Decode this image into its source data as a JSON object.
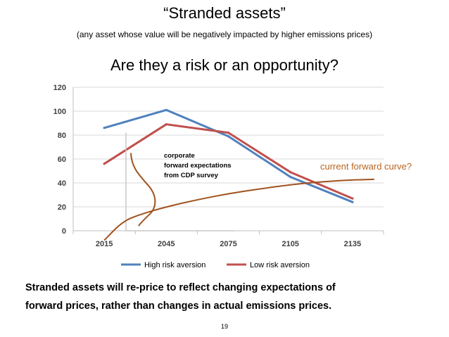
{
  "slide": {
    "title": "“Stranded assets”",
    "subtitle": "(any asset whose value will be negatively impacted by higher emissions prices)",
    "question": "Are they a risk or an opportunity?",
    "conclusion_line1": "Stranded assets will re-price to reflect changing expectations of",
    "conclusion_line2": "forward prices, rather than changes in actual emissions prices.",
    "page_number": "19"
  },
  "colors": {
    "high_risk": "#4f81bd",
    "low_risk": "#c0504d",
    "forward_curve": "#a0521e",
    "forward_label": "#b8651f"
  },
  "chart_data": {
    "type": "line",
    "title": "",
    "xlabel": "",
    "ylabel": "",
    "categories": [
      "2015",
      "2045",
      "2075",
      "2105",
      "2135"
    ],
    "ylim": [
      0,
      120
    ],
    "yticks": [
      0,
      20,
      40,
      60,
      80,
      100,
      120
    ],
    "series": [
      {
        "name": "High risk aversion",
        "values": [
          86,
          101,
          79,
          45,
          24
        ]
      },
      {
        "name": "Low risk aversion",
        "values": [
          56,
          89,
          82,
          49,
          27
        ]
      }
    ],
    "annotations": {
      "cdp_line1": "corporate",
      "cdp_line2": "forward expectations",
      "cdp_line3": "from CDP survey",
      "forward_curve_label": "current forward curve?",
      "forward_curve_x": [
        0.0,
        0.3,
        0.6,
        1.0,
        1.5,
        2.0,
        2.5,
        3.0,
        3.5,
        4.0,
        4.35
      ],
      "forward_curve_y": [
        -8,
        8,
        14,
        20,
        26,
        31,
        35,
        38.5,
        41,
        42.5,
        43
      ]
    }
  }
}
